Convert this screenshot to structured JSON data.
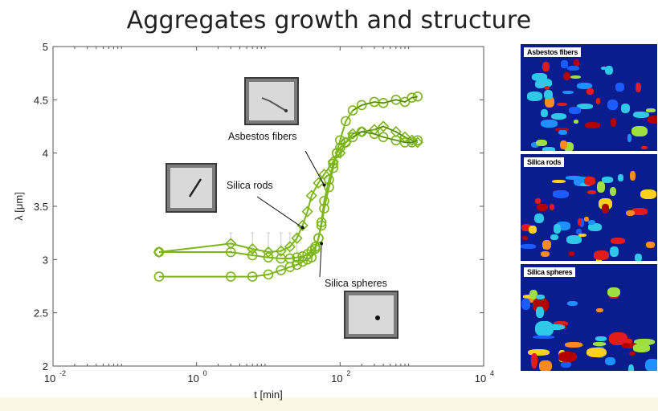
{
  "title": "Aggregates growth and structure",
  "colors": {
    "series": "#7cb518",
    "series_dark": "#4a7a10",
    "axis": "#555555",
    "panel_bg": "#0a1d8f"
  },
  "chart_data": {
    "type": "line",
    "title": "",
    "xlabel": "t [min]",
    "ylabel": "λ [μm]",
    "x_scale": "log",
    "xlim": [
      0.01,
      10000
    ],
    "ylim": [
      2,
      5
    ],
    "x_ticks": [
      {
        "value": 0.01,
        "base": "10",
        "exp": "-2"
      },
      {
        "value": 1,
        "base": "10",
        "exp": "0"
      },
      {
        "value": 100,
        "base": "10",
        "exp": "2"
      },
      {
        "value": 10000,
        "base": "10",
        "exp": "4"
      }
    ],
    "y_ticks": [
      "2",
      "2.5",
      "3",
      "3.5",
      "4",
      "4.5",
      "5"
    ],
    "series": [
      {
        "marker": "circle",
        "x": [
          0.3,
          3,
          6,
          10,
          15,
          20,
          25,
          30,
          35,
          40,
          45,
          50,
          55,
          60,
          70,
          80,
          90,
          100,
          120,
          150,
          200,
          300,
          400,
          600,
          800,
          1000,
          1200
        ],
        "y": [
          3.07,
          3.07,
          3.04,
          3.02,
          3.01,
          3.01,
          3.02,
          3.03,
          3.05,
          3.08,
          3.12,
          3.2,
          3.32,
          3.48,
          3.68,
          3.86,
          4.0,
          4.12,
          4.3,
          4.4,
          4.45,
          4.48,
          4.47,
          4.5,
          4.48,
          4.52,
          4.53
        ]
      },
      {
        "marker": "diamond",
        "x": [
          0.3,
          3,
          6,
          10,
          15,
          20,
          25,
          30,
          35,
          40,
          50,
          60,
          80,
          100,
          120,
          150,
          200,
          300,
          400,
          600,
          800,
          1000,
          1200
        ],
        "y": [
          3.07,
          3.15,
          3.1,
          3.07,
          3.08,
          3.12,
          3.2,
          3.32,
          3.45,
          3.6,
          3.72,
          3.8,
          3.92,
          4.0,
          4.1,
          4.18,
          4.2,
          4.22,
          4.25,
          4.2,
          4.15,
          4.12,
          4.1
        ]
      },
      {
        "marker": "circle",
        "x": [
          0.3,
          3,
          6,
          10,
          15,
          20,
          25,
          30,
          35,
          40,
          45,
          50,
          55,
          60,
          70,
          80,
          90,
          100,
          120,
          150,
          200,
          300,
          400,
          600,
          800,
          1000,
          1200
        ],
        "y": [
          2.84,
          2.84,
          2.84,
          2.86,
          2.9,
          2.93,
          2.95,
          2.98,
          3.0,
          3.02,
          3.1,
          3.2,
          3.35,
          3.55,
          3.75,
          3.9,
          4.0,
          4.05,
          4.1,
          4.15,
          4.2,
          4.18,
          4.15,
          4.12,
          4.1,
          4.1,
          4.12
        ]
      }
    ],
    "annotations": [
      {
        "text": "Asbestos fibers",
        "target_x": 60,
        "target_y": 3.7
      },
      {
        "text": "Silica rods",
        "target_x": 30,
        "target_y": 3.3
      },
      {
        "text": "Silica spheres",
        "target_x": 55,
        "target_y": 3.15
      }
    ]
  },
  "panels": [
    {
      "label": "Asbestos fibers"
    },
    {
      "label": "Silica rods"
    },
    {
      "label": "Silica spheres"
    }
  ]
}
